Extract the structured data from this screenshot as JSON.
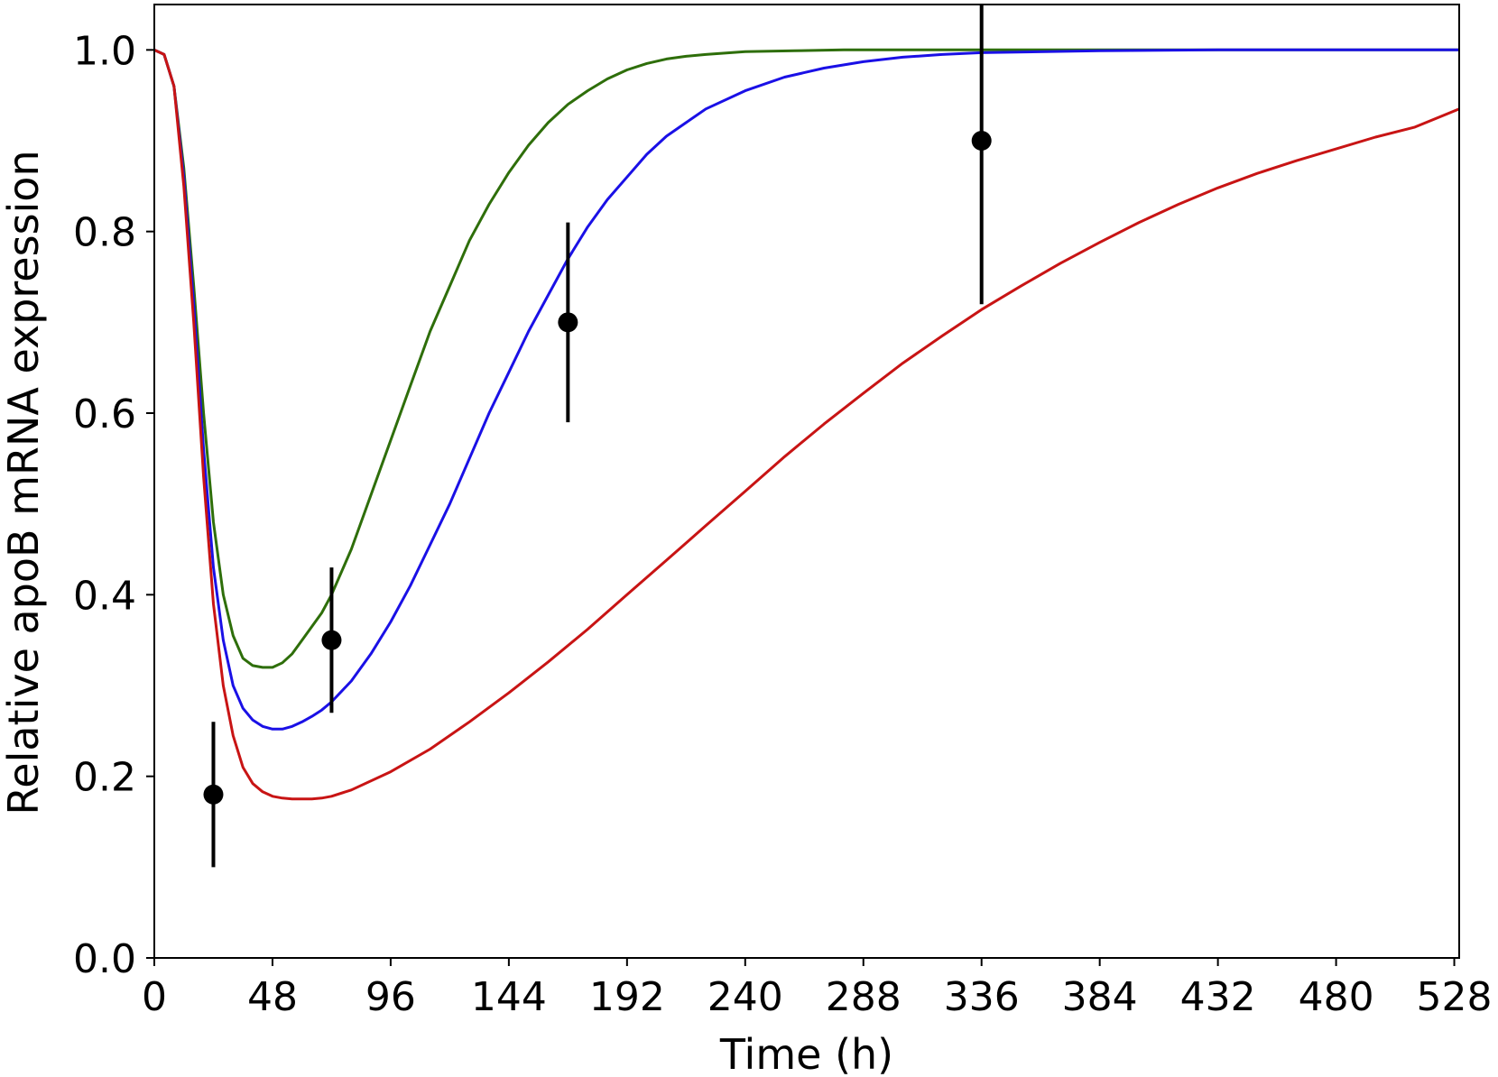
{
  "chart_data": {
    "type": "line",
    "title": "",
    "xlabel": "Time (h)",
    "ylabel": "Relative apoB mRNA expression",
    "xlim": [
      0,
      530
    ],
    "ylim": [
      0,
      1.05
    ],
    "x_ticks": [
      0,
      48,
      96,
      144,
      192,
      240,
      288,
      336,
      384,
      432,
      480,
      528
    ],
    "y_ticks": [
      0.0,
      0.2,
      0.4,
      0.6,
      0.8,
      1.0
    ],
    "y_tick_labels": [
      "0.0",
      "0.2",
      "0.4",
      "0.6",
      "0.8",
      "1.0"
    ],
    "grid": false,
    "legend": "none",
    "series": [
      {
        "color": "#2e6e0a",
        "x": [
          0,
          4,
          8,
          12,
          16,
          20,
          24,
          28,
          32,
          36,
          40,
          44,
          48,
          52,
          56,
          60,
          64,
          68,
          72,
          80,
          88,
          96,
          104,
          112,
          120,
          128,
          136,
          144,
          152,
          160,
          168,
          176,
          184,
          192,
          200,
          208,
          216,
          224,
          240,
          260,
          280,
          300,
          336,
          384,
          432,
          480,
          530
        ],
        "y": [
          1.0,
          0.995,
          0.96,
          0.87,
          0.74,
          0.6,
          0.48,
          0.4,
          0.355,
          0.33,
          0.322,
          0.32,
          0.32,
          0.325,
          0.335,
          0.35,
          0.365,
          0.38,
          0.4,
          0.45,
          0.51,
          0.57,
          0.63,
          0.69,
          0.74,
          0.79,
          0.83,
          0.865,
          0.895,
          0.92,
          0.94,
          0.955,
          0.968,
          0.978,
          0.985,
          0.99,
          0.993,
          0.995,
          0.998,
          0.999,
          1.0,
          1.0,
          1.0,
          1.0,
          1.0,
          1.0,
          1.0
        ]
      },
      {
        "color": "#1a10e6",
        "x": [
          0,
          4,
          8,
          12,
          16,
          20,
          24,
          28,
          32,
          36,
          40,
          44,
          48,
          52,
          56,
          60,
          64,
          68,
          72,
          80,
          88,
          96,
          104,
          112,
          120,
          128,
          136,
          144,
          152,
          160,
          168,
          176,
          184,
          192,
          200,
          208,
          216,
          224,
          240,
          256,
          272,
          288,
          304,
          320,
          336,
          384,
          432,
          480,
          530
        ],
        "y": [
          1.0,
          0.995,
          0.96,
          0.86,
          0.72,
          0.56,
          0.43,
          0.35,
          0.3,
          0.275,
          0.262,
          0.255,
          0.252,
          0.252,
          0.255,
          0.26,
          0.266,
          0.273,
          0.282,
          0.305,
          0.335,
          0.37,
          0.41,
          0.455,
          0.5,
          0.55,
          0.6,
          0.645,
          0.69,
          0.73,
          0.77,
          0.805,
          0.835,
          0.86,
          0.885,
          0.905,
          0.92,
          0.935,
          0.955,
          0.97,
          0.98,
          0.987,
          0.992,
          0.995,
          0.997,
          0.999,
          1.0,
          1.0,
          1.0
        ]
      },
      {
        "color": "#c81414",
        "x": [
          0,
          4,
          8,
          12,
          16,
          20,
          24,
          28,
          32,
          36,
          40,
          44,
          48,
          52,
          56,
          60,
          64,
          68,
          72,
          80,
          96,
          112,
          128,
          144,
          160,
          176,
          192,
          208,
          224,
          240,
          256,
          272,
          288,
          304,
          320,
          336,
          352,
          368,
          384,
          400,
          416,
          432,
          448,
          464,
          480,
          496,
          512,
          530
        ],
        "y": [
          1.0,
          0.995,
          0.96,
          0.85,
          0.7,
          0.53,
          0.39,
          0.3,
          0.245,
          0.21,
          0.192,
          0.183,
          0.178,
          0.176,
          0.175,
          0.175,
          0.175,
          0.176,
          0.178,
          0.185,
          0.205,
          0.23,
          0.26,
          0.292,
          0.326,
          0.362,
          0.4,
          0.438,
          0.476,
          0.514,
          0.552,
          0.588,
          0.622,
          0.655,
          0.685,
          0.714,
          0.74,
          0.765,
          0.788,
          0.81,
          0.83,
          0.848,
          0.864,
          0.878,
          0.891,
          0.904,
          0.915,
          0.935
        ]
      }
    ],
    "error_points": {
      "color": "#000000",
      "x": [
        24,
        72,
        168,
        336
      ],
      "y": [
        0.18,
        0.35,
        0.7,
        0.9
      ],
      "yerr_low": [
        0.1,
        0.27,
        0.59,
        0.72
      ],
      "yerr_high": [
        0.26,
        0.43,
        0.81,
        1.08
      ]
    }
  }
}
